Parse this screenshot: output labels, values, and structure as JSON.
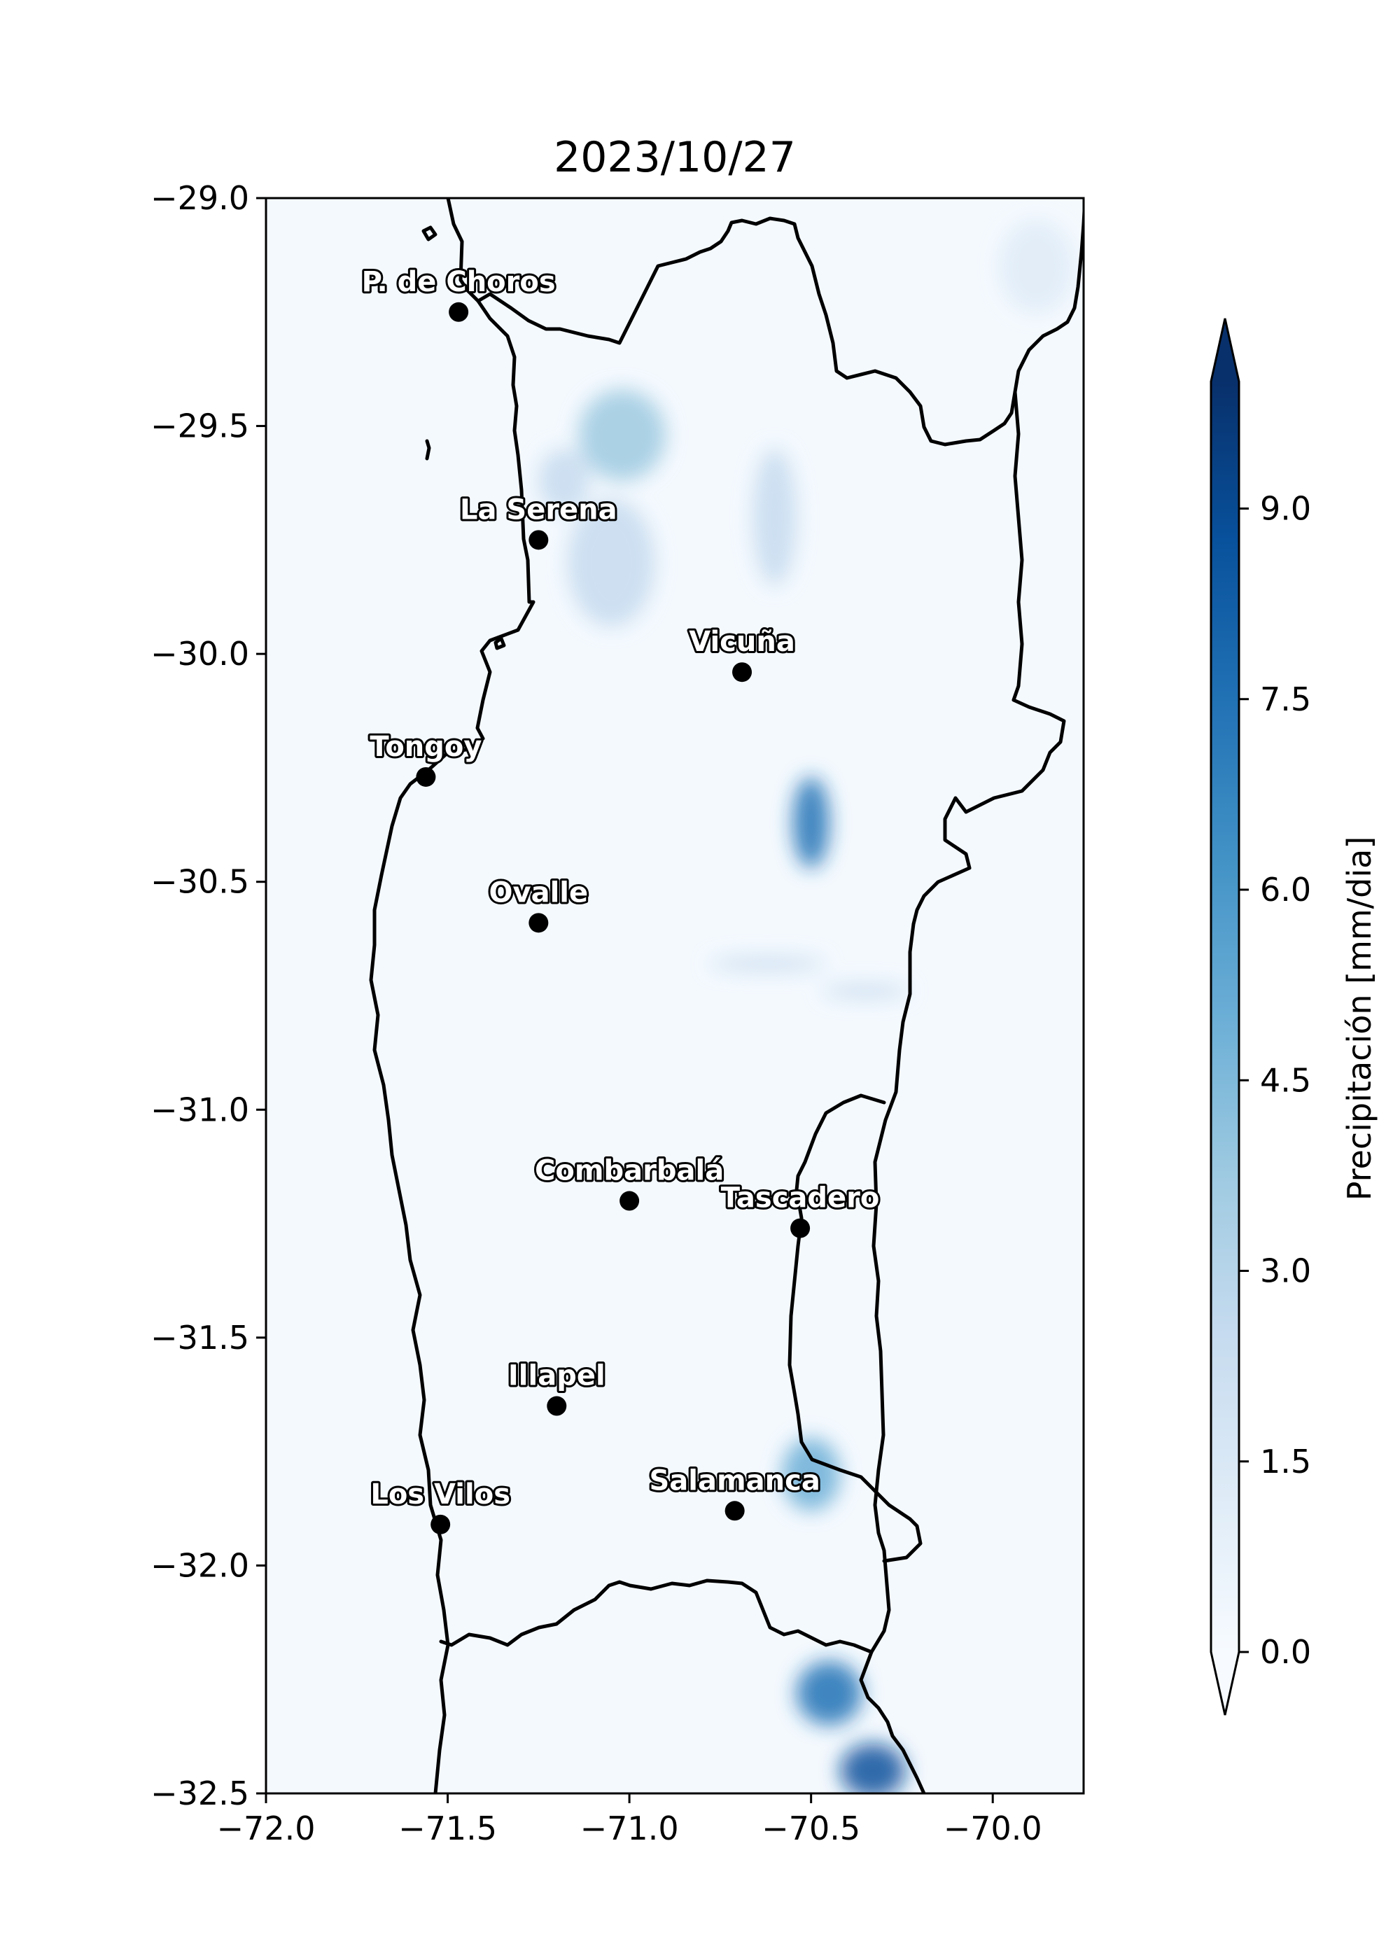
{
  "title": "2023/10/27",
  "map": {
    "xlim": [
      -72.0,
      -69.75
    ],
    "ylim": [
      -32.5,
      -29.0
    ],
    "x_ticks": [
      {
        "value": -72.0,
        "label": "−72.0"
      },
      {
        "value": -71.5,
        "label": "−71.5"
      },
      {
        "value": -71.0,
        "label": "−71.0"
      },
      {
        "value": -70.5,
        "label": "−70.5"
      },
      {
        "value": -70.0,
        "label": "−70.0"
      }
    ],
    "y_ticks": [
      {
        "value": -29.0,
        "label": "−29.0"
      },
      {
        "value": -29.5,
        "label": "−29.5"
      },
      {
        "value": -30.0,
        "label": "−30.0"
      },
      {
        "value": -30.5,
        "label": "−30.5"
      },
      {
        "value": -31.0,
        "label": "−31.0"
      },
      {
        "value": -31.5,
        "label": "−31.5"
      },
      {
        "value": -32.0,
        "label": "−32.0"
      },
      {
        "value": -32.5,
        "label": "−32.5"
      }
    ],
    "cities": [
      {
        "name": "P. de Choros",
        "lon": -71.47,
        "lat": -29.25
      },
      {
        "name": "La Serena",
        "lon": -71.25,
        "lat": -29.75
      },
      {
        "name": "Vicuña",
        "lon": -70.69,
        "lat": -30.04
      },
      {
        "name": "Tongoy",
        "lon": -71.56,
        "lat": -30.27
      },
      {
        "name": "Ovalle",
        "lon": -71.25,
        "lat": -30.59
      },
      {
        "name": "Combarbalá",
        "lon": -71.0,
        "lat": -31.2
      },
      {
        "name": "Tascadero",
        "lon": -70.53,
        "lat": -31.26
      },
      {
        "name": "Illapel",
        "lon": -71.2,
        "lat": -31.65
      },
      {
        "name": "Los Vilos",
        "lon": -71.52,
        "lat": -31.91
      },
      {
        "name": "Salamanca",
        "lon": -70.71,
        "lat": -31.88
      }
    ],
    "precip_blobs": [
      {
        "lon": -71.02,
        "lat": -29.52,
        "rlon": 0.12,
        "rlat": 0.1,
        "value": 3.2
      },
      {
        "lon": -71.18,
        "lat": -29.62,
        "rlon": 0.07,
        "rlat": 0.07,
        "value": 2.8
      },
      {
        "lon": -71.05,
        "lat": -29.8,
        "rlon": 0.12,
        "rlat": 0.14,
        "value": 2.8
      },
      {
        "lon": -70.6,
        "lat": -29.7,
        "rlon": 0.06,
        "rlat": 0.15,
        "value": 2.2
      },
      {
        "lon": -70.5,
        "lat": -30.37,
        "rlon": 0.05,
        "rlat": 0.1,
        "value": 7.5
      },
      {
        "lon": -70.62,
        "lat": -30.68,
        "rlon": 0.16,
        "rlat": 0.015,
        "value": 3.0
      },
      {
        "lon": -70.35,
        "lat": -30.74,
        "rlon": 0.12,
        "rlat": 0.015,
        "value": 2.6
      },
      {
        "lon": -70.5,
        "lat": -31.8,
        "rlon": 0.08,
        "rlat": 0.08,
        "value": 4.8
      },
      {
        "lon": -70.45,
        "lat": -32.28,
        "rlon": 0.09,
        "rlat": 0.07,
        "value": 7.8
      },
      {
        "lon": -70.33,
        "lat": -32.45,
        "rlon": 0.09,
        "rlat": 0.06,
        "value": 9.0
      },
      {
        "lon": -69.88,
        "lat": -29.15,
        "rlon": 0.1,
        "rlat": 0.1,
        "value": 1.8
      }
    ]
  },
  "colorbar": {
    "label": "Precipitación [mm/dia]",
    "range": [
      0,
      10
    ],
    "ticks": [
      {
        "value": 0.0,
        "label": "0.0"
      },
      {
        "value": 1.5,
        "label": "1.5"
      },
      {
        "value": 3.0,
        "label": "3.0"
      },
      {
        "value": 4.5,
        "label": "4.5"
      },
      {
        "value": 6.0,
        "label": "6.0"
      },
      {
        "value": 7.5,
        "label": "7.5"
      },
      {
        "value": 9.0,
        "label": "9.0"
      }
    ],
    "colors": [
      "#f7fbff",
      "#deebf7",
      "#c6dbef",
      "#9ecae1",
      "#6baed6",
      "#4292c6",
      "#2171b5",
      "#08519c",
      "#08306b"
    ]
  }
}
